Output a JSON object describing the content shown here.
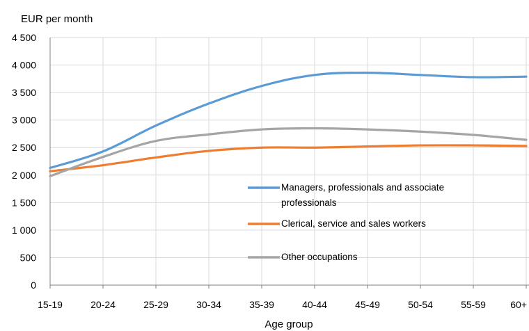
{
  "chart_data": {
    "type": "line",
    "title": "",
    "ylabel": "EUR per month",
    "xlabel": "Age group",
    "categories": [
      "15-19",
      "20-24",
      "25-29",
      "30-34",
      "35-39",
      "40-44",
      "45-49",
      "50-54",
      "55-59",
      "60+"
    ],
    "ylim": [
      0,
      4500
    ],
    "yticks": [
      0,
      500,
      1000,
      1500,
      2000,
      2500,
      3000,
      3500,
      4000,
      4500
    ],
    "ytick_labels": [
      "0",
      "500",
      "1 000",
      "1 500",
      "2 000",
      "2 500",
      "3 000",
      "3 500",
      "4 000",
      "4 500"
    ],
    "grid": true,
    "legend_position": "inside-lower-right",
    "series": [
      {
        "name_lines": [
          "Managers, professionals and associate",
          "professionals"
        ],
        "color": "#5b9bd5",
        "values": [
          2130,
          2430,
          2900,
          3300,
          3620,
          3820,
          3860,
          3820,
          3780,
          3790
        ]
      },
      {
        "name_lines": [
          "Clerical, service and sales workers"
        ],
        "color": "#ed7d31",
        "values": [
          2070,
          2180,
          2320,
          2440,
          2500,
          2500,
          2520,
          2540,
          2540,
          2530
        ]
      },
      {
        "name_lines": [
          "Other occupations"
        ],
        "color": "#a5a5a5",
        "values": [
          1980,
          2330,
          2620,
          2740,
          2830,
          2850,
          2830,
          2790,
          2730,
          2640
        ]
      }
    ]
  }
}
